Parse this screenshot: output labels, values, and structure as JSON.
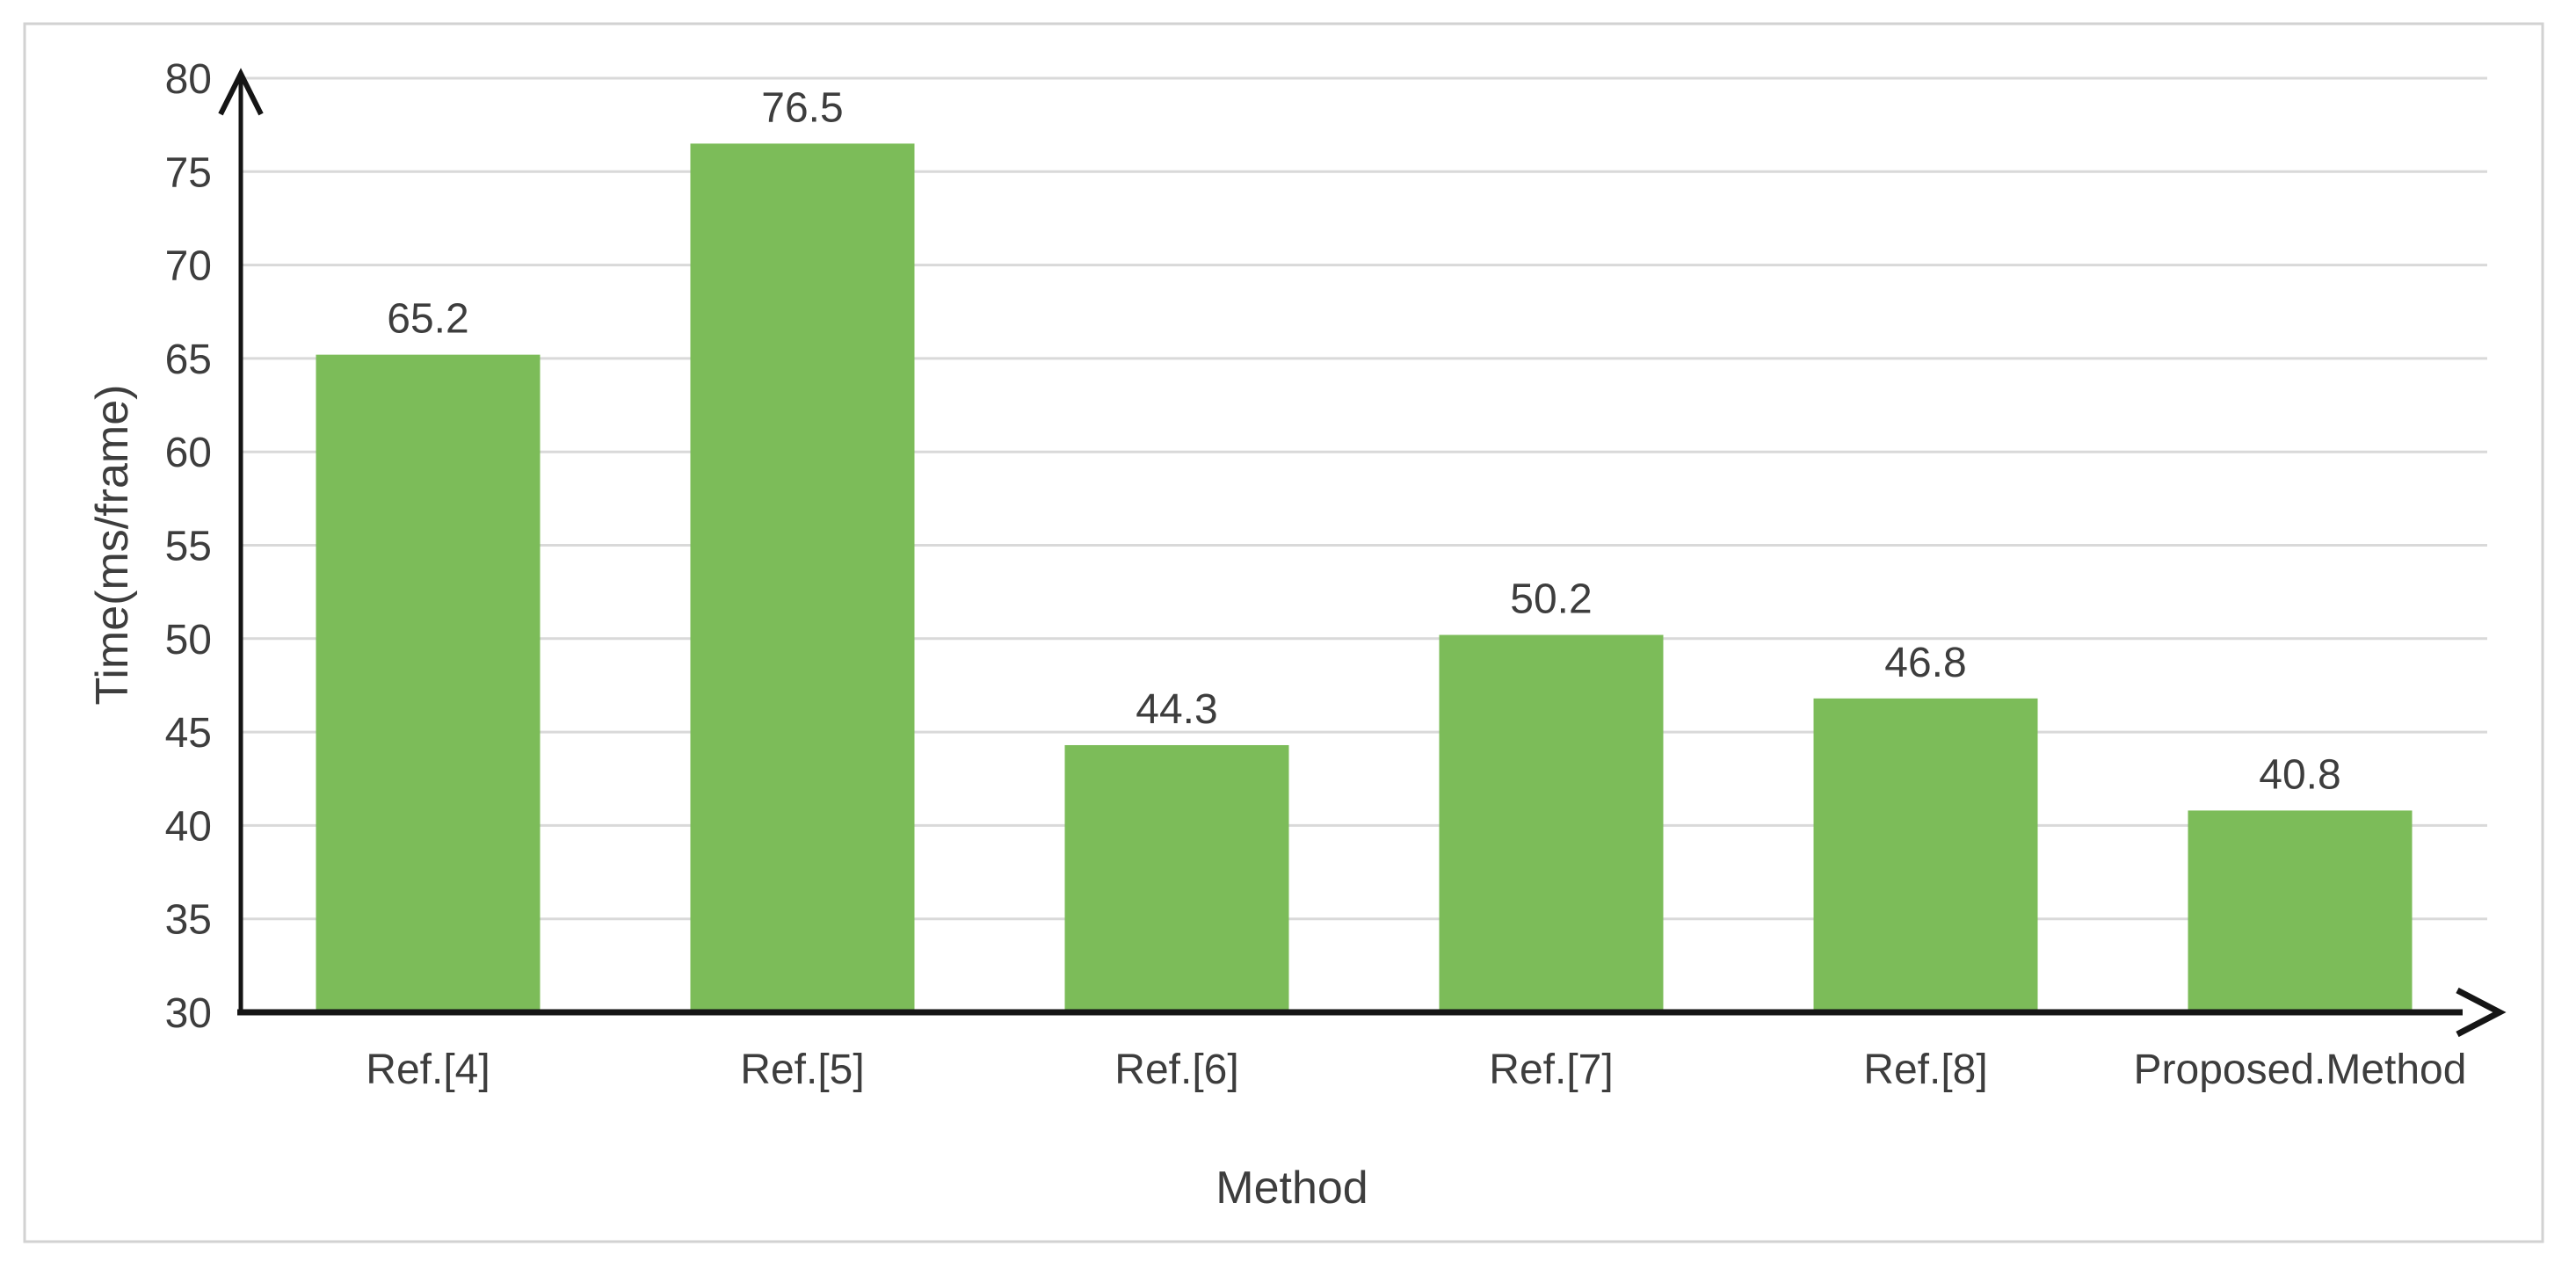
{
  "chart_data": {
    "type": "bar",
    "title": "",
    "xlabel": "Method",
    "ylabel": "Time(ms/frame)",
    "categories": [
      "Ref.[4]",
      "Ref.[5]",
      "Ref.[6]",
      "Ref.[7]",
      "Ref.[8]",
      "Proposed.Method"
    ],
    "values": [
      65.2,
      76.5,
      44.3,
      50.2,
      46.8,
      40.8
    ],
    "data_labels": [
      "65.2",
      "76.5",
      "44.3",
      "50.2",
      "46.8",
      "40.8"
    ],
    "ylim": [
      30,
      80
    ],
    "yticks": [
      30,
      35,
      40,
      45,
      50,
      55,
      60,
      65,
      70,
      75,
      80
    ],
    "grid": true,
    "legend": false,
    "axes_have_arrowheads": true,
    "colors": {
      "bar": "#7CBC59",
      "gridline": "#D9D9D9",
      "axis_line": "#151515",
      "text": "#3D3D3D",
      "frame_border": "#D2D2D2",
      "background": "#FFFFFF"
    }
  }
}
